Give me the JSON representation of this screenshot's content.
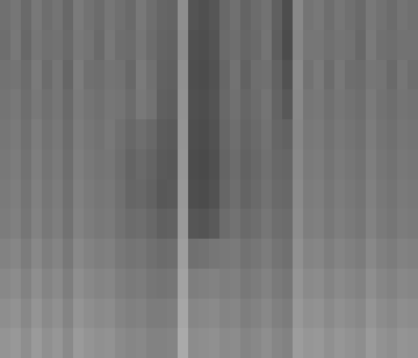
{
  "chart_data": {
    "type": "heatmap",
    "tick_labels": false,
    "zlim": [
      0,
      255
    ],
    "cells": [
      [
        112,
        118,
        106,
        120,
        110,
        116,
        104,
        122,
        114,
        108,
        118,
        112,
        106,
        120,
        110,
        102,
        100,
        142,
        84,
        80,
        86,
        104,
        112,
        100,
        108,
        114,
        96,
        78,
        136,
        116,
        120,
        110,
        118,
        112,
        106,
        120,
        114,
        108,
        116,
        112
      ],
      [
        110,
        120,
        104,
        118,
        112,
        114,
        106,
        120,
        116,
        106,
        120,
        110,
        108,
        118,
        108,
        100,
        98,
        140,
        80,
        78,
        84,
        106,
        110,
        102,
        106,
        116,
        94,
        76,
        134,
        118,
        118,
        112,
        116,
        114,
        104,
        122,
        112,
        110,
        114,
        114
      ],
      [
        114,
        116,
        108,
        122,
        108,
        118,
        102,
        124,
        112,
        110,
        116,
        114,
        104,
        122,
        112,
        98,
        96,
        144,
        78,
        76,
        82,
        102,
        114,
        98,
        110,
        112,
        98,
        82,
        138,
        114,
        122,
        108,
        120,
        110,
        108,
        118,
        116,
        106,
        118,
        110
      ],
      [
        116,
        120,
        110,
        120,
        112,
        118,
        106,
        122,
        116,
        112,
        118,
        116,
        108,
        120,
        114,
        96,
        94,
        146,
        80,
        78,
        84,
        104,
        112,
        102,
        108,
        116,
        100,
        88,
        136,
        118,
        120,
        112,
        118,
        114,
        110,
        122,
        114,
        110,
        116,
        114
      ],
      [
        118,
        122,
        112,
        124,
        114,
        120,
        108,
        124,
        118,
        114,
        120,
        112,
        104,
        110,
        104,
        92,
        90,
        148,
        78,
        76,
        82,
        102,
        110,
        100,
        106,
        114,
        102,
        98,
        134,
        120,
        122,
        114,
        120,
        116,
        112,
        124,
        116,
        112,
        118,
        116
      ],
      [
        120,
        124,
        114,
        126,
        116,
        122,
        110,
        126,
        120,
        116,
        118,
        110,
        100,
        106,
        100,
        90,
        88,
        150,
        76,
        74,
        80,
        100,
        108,
        98,
        104,
        112,
        104,
        102,
        136,
        122,
        124,
        116,
        122,
        118,
        114,
        126,
        118,
        114,
        120,
        118
      ],
      [
        122,
        126,
        116,
        128,
        118,
        124,
        112,
        128,
        122,
        118,
        120,
        112,
        102,
        104,
        98,
        88,
        90,
        152,
        78,
        76,
        82,
        102,
        110,
        100,
        106,
        114,
        106,
        104,
        138,
        124,
        126,
        118,
        124,
        120,
        116,
        128,
        120,
        116,
        122,
        120
      ],
      [
        124,
        128,
        118,
        130,
        120,
        126,
        114,
        130,
        124,
        120,
        122,
        114,
        108,
        110,
        104,
        96,
        98,
        154,
        86,
        84,
        90,
        108,
        114,
        106,
        110,
        118,
        110,
        108,
        140,
        126,
        128,
        120,
        126,
        122,
        118,
        130,
        122,
        118,
        124,
        122
      ],
      [
        130,
        134,
        124,
        136,
        126,
        132,
        120,
        136,
        130,
        126,
        128,
        120,
        116,
        118,
        112,
        108,
        110,
        158,
        112,
        114,
        118,
        120,
        122,
        114,
        118,
        124,
        116,
        112,
        144,
        132,
        134,
        126,
        132,
        128,
        124,
        136,
        128,
        124,
        130,
        128
      ],
      [
        136,
        140,
        130,
        142,
        132,
        138,
        126,
        142,
        136,
        132,
        134,
        126,
        122,
        124,
        118,
        116,
        118,
        162,
        126,
        128,
        130,
        126,
        128,
        120,
        124,
        130,
        122,
        118,
        148,
        138,
        140,
        132,
        138,
        134,
        130,
        142,
        134,
        130,
        136,
        134
      ],
      [
        142,
        146,
        136,
        148,
        138,
        144,
        132,
        148,
        142,
        138,
        140,
        132,
        128,
        130,
        124,
        124,
        126,
        166,
        134,
        136,
        138,
        132,
        134,
        126,
        130,
        136,
        128,
        124,
        152,
        144,
        146,
        138,
        144,
        140,
        136,
        148,
        140,
        136,
        142,
        140
      ],
      [
        148,
        152,
        142,
        154,
        144,
        150,
        138,
        154,
        148,
        144,
        146,
        138,
        134,
        136,
        130,
        130,
        132,
        170,
        140,
        142,
        144,
        138,
        140,
        132,
        136,
        142,
        134,
        130,
        156,
        150,
        152,
        144,
        150,
        146,
        142,
        154,
        146,
        142,
        148,
        146
      ]
    ]
  }
}
